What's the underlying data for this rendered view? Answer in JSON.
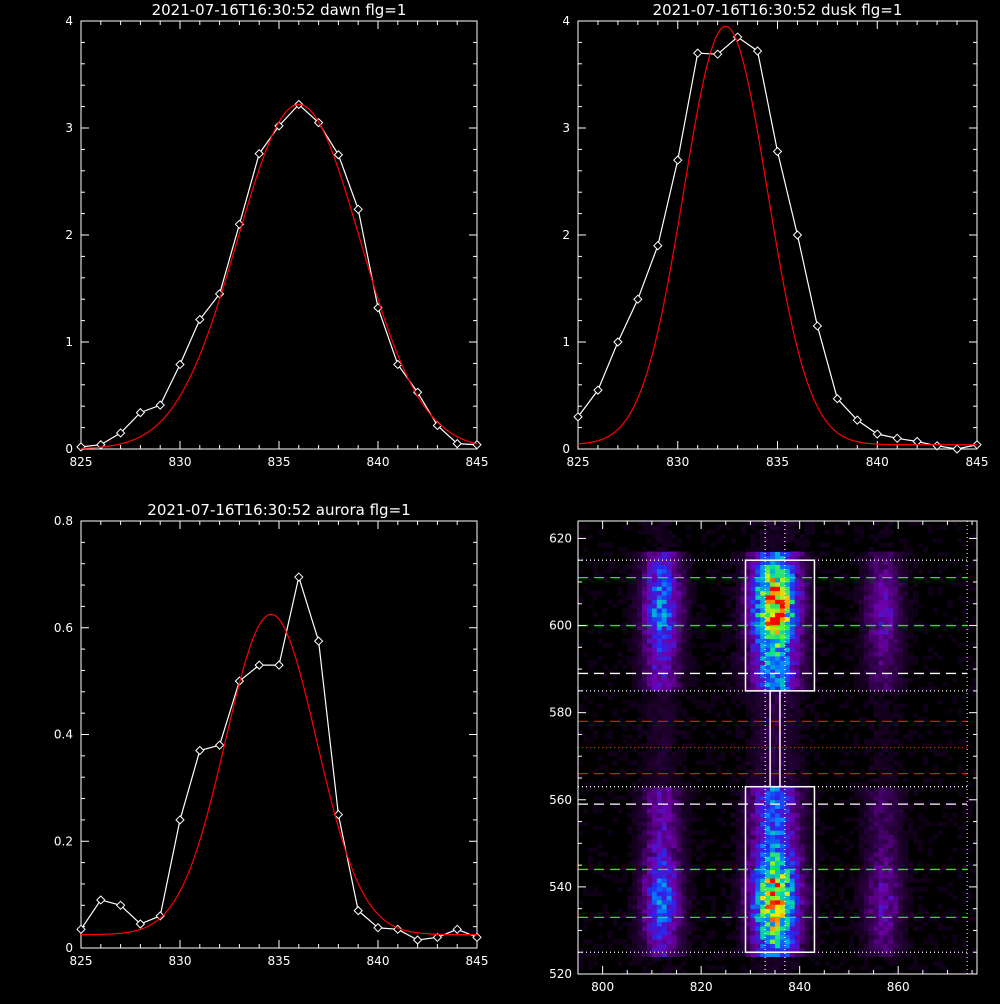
{
  "chart_data": [
    {
      "type": "line",
      "title": "2021-07-16T16:30:52 dawn flg=1",
      "xlim": [
        825,
        845
      ],
      "ylim": [
        0,
        4
      ],
      "xticks": [
        825,
        830,
        835,
        840,
        845
      ],
      "yticks": [
        0,
        1,
        2,
        3,
        4
      ],
      "series": [
        {
          "color": "#ffffff",
          "marker": "diamond",
          "x": [
            825,
            826,
            827,
            828,
            829,
            830,
            831,
            832,
            833,
            834,
            835,
            836,
            837,
            838,
            839,
            840,
            841,
            842,
            843,
            844,
            845
          ],
          "y": [
            0.02,
            0.04,
            0.15,
            0.34,
            0.41,
            0.79,
            1.21,
            1.45,
            2.1,
            2.76,
            3.02,
            3.22,
            3.05,
            2.75,
            2.24,
            1.32,
            0.79,
            0.53,
            0.22,
            0.05,
            0.04
          ]
        },
        {
          "color": "#ff0000",
          "marker": "none",
          "gauss": {
            "amp": 3.22,
            "mu": 836.0,
            "sigma": 3.1,
            "base": 0.0
          }
        }
      ]
    },
    {
      "type": "line",
      "title": "2021-07-16T16:30:52 dusk flg=1",
      "xlim": [
        825,
        845
      ],
      "ylim": [
        0,
        4
      ],
      "xticks": [
        825,
        830,
        835,
        840,
        845
      ],
      "yticks": [
        0,
        1,
        2,
        3,
        4
      ],
      "series": [
        {
          "color": "#ffffff",
          "marker": "diamond",
          "x": [
            825,
            826,
            827,
            828,
            829,
            830,
            831,
            832,
            833,
            834,
            835,
            836,
            837,
            838,
            839,
            840,
            841,
            842,
            843,
            844,
            845
          ],
          "y": [
            0.3,
            0.55,
            1.0,
            1.4,
            1.9,
            2.7,
            3.7,
            3.69,
            3.85,
            3.72,
            2.78,
            2.0,
            1.15,
            0.47,
            0.27,
            0.14,
            0.1,
            0.07,
            0.03,
            0.0,
            0.04
          ]
        },
        {
          "color": "#ff0000",
          "marker": "none",
          "gauss": {
            "amp": 3.91,
            "mu": 832.4,
            "sigma": 2.1,
            "base": 0.04
          }
        }
      ]
    },
    {
      "type": "line",
      "title": "2021-07-16T16:30:52 aurora flg=1",
      "xlim": [
        825,
        845
      ],
      "ylim": [
        0,
        0.8
      ],
      "xticks": [
        825,
        830,
        835,
        840,
        845
      ],
      "yticks": [
        0,
        0.2,
        0.4,
        0.6,
        0.8
      ],
      "series": [
        {
          "color": "#ffffff",
          "marker": "diamond",
          "x": [
            825,
            826,
            827,
            828,
            829,
            830,
            831,
            832,
            833,
            834,
            835,
            836,
            837,
            838,
            839,
            840,
            841,
            842,
            843,
            844,
            845
          ],
          "y": [
            0.035,
            0.09,
            0.08,
            0.045,
            0.06,
            0.24,
            0.37,
            0.38,
            0.5,
            0.53,
            0.53,
            0.695,
            0.575,
            0.25,
            0.07,
            0.038,
            0.035,
            0.015,
            0.02,
            0.035,
            0.02
          ]
        },
        {
          "color": "#ff0000",
          "marker": "none",
          "gauss": {
            "amp": 0.6,
            "mu": 834.6,
            "sigma": 2.3,
            "base": 0.025
          }
        }
      ]
    },
    {
      "type": "heatmap",
      "title": "",
      "xlim": [
        795,
        876
      ],
      "ylim": [
        520,
        624
      ],
      "xticks": [
        800,
        820,
        840,
        860
      ],
      "yticks": [
        520,
        540,
        560,
        580,
        600,
        620
      ],
      "bands": [
        {
          "center_x": 812,
          "half_width": 4,
          "intensity": 0.55
        },
        {
          "center_x": 835,
          "half_width": 5,
          "intensity": 1.0
        },
        {
          "center_x": 857,
          "half_width": 4,
          "intensity": 0.3
        }
      ],
      "boxes": [
        {
          "x": [
            829,
            843
          ],
          "y": [
            585,
            615
          ],
          "color": "#ffffff"
        },
        {
          "x": [
            829,
            843
          ],
          "y": [
            525,
            563
          ],
          "color": "#ffffff"
        },
        {
          "x": [
            834,
            836
          ],
          "y": [
            563,
            585
          ],
          "color": "#ffffff"
        }
      ],
      "hlines": [
        {
          "y": 615,
          "color": "#ffffff",
          "style": "dotted"
        },
        {
          "y": 611,
          "color": "#00ff00",
          "style": "dashed"
        },
        {
          "y": 600,
          "color": "#00ff00",
          "style": "dashed"
        },
        {
          "y": 589,
          "color": "#ffffff",
          "style": "dashed"
        },
        {
          "y": 585,
          "color": "#ffffff",
          "style": "dotted"
        },
        {
          "y": 578,
          "color": "#ff0000",
          "style": "dashed"
        },
        {
          "y": 572,
          "color": "#ff0000",
          "style": "dotted"
        },
        {
          "y": 566,
          "color": "#ff0000",
          "style": "dashed"
        },
        {
          "y": 563,
          "color": "#ffffff",
          "style": "dotted"
        },
        {
          "y": 559,
          "color": "#ffffff",
          "style": "dashed"
        },
        {
          "y": 544,
          "color": "#00ff00",
          "style": "dashed"
        },
        {
          "y": 533,
          "color": "#00ff00",
          "style": "dashed"
        },
        {
          "y": 525,
          "color": "#ffffff",
          "style": "dotted"
        }
      ],
      "vlines": [
        {
          "x": 833,
          "color": "#ffffff",
          "style": "dotted"
        },
        {
          "x": 837,
          "color": "#ffffff",
          "style": "dotted"
        }
      ]
    }
  ]
}
